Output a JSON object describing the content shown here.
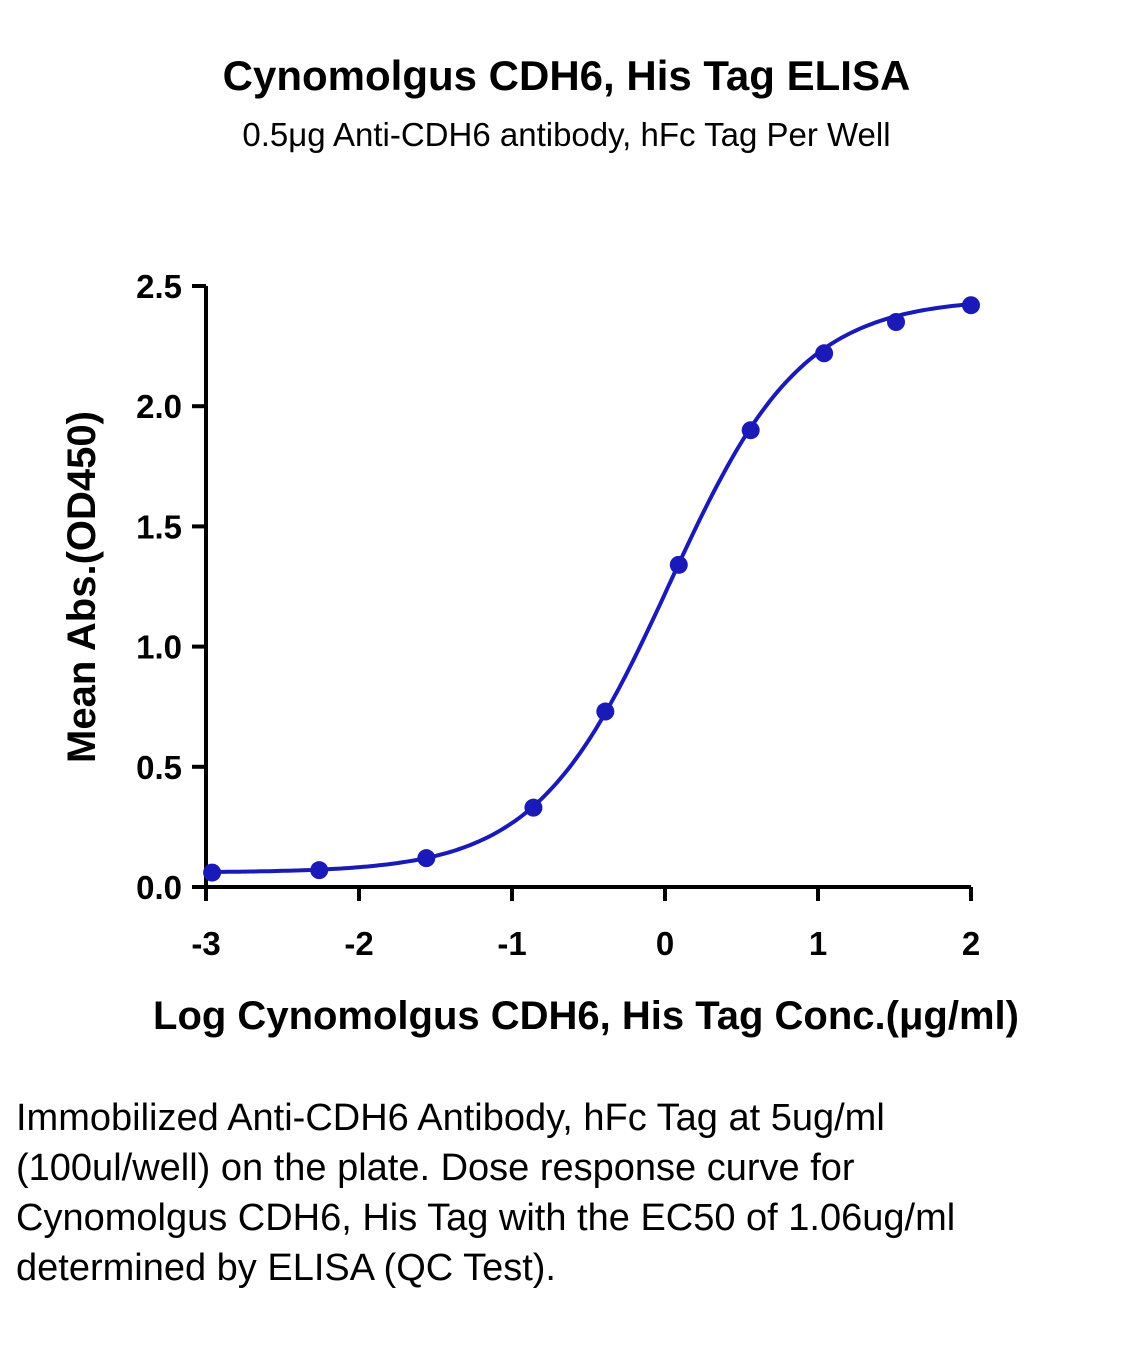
{
  "chart_data": {
    "type": "line",
    "title": "Cynomolgus CDH6, His Tag ELISA",
    "subtitle": "0.5μg Anti-CDH6 antibody, hFc Tag Per Well",
    "xlabel": "Log Cynomolgus CDH6, His Tag Conc.(μg/ml)",
    "ylabel": "Mean Abs.(OD450)",
    "xlim": [
      -3,
      2
    ],
    "ylim": [
      0,
      2.5
    ],
    "x_ticks": [
      -3,
      -2,
      -1,
      0,
      1,
      2
    ],
    "y_ticks": [
      "0.0",
      "0.5",
      "1.0",
      "1.5",
      "2.0",
      "2.5"
    ],
    "grid": false,
    "series": [
      {
        "color": "#1a1ab8",
        "x": [
          -2.96,
          -2.26,
          -1.56,
          -0.86,
          -0.39,
          0.09,
          0.56,
          1.04,
          1.51,
          2.0
        ],
        "y": [
          0.06,
          0.07,
          0.12,
          0.33,
          0.73,
          1.34,
          1.9,
          2.22,
          2.35,
          2.42
        ]
      }
    ],
    "fit": {
      "bottom": 0.06,
      "top": 2.45,
      "log_ec50": 0.025,
      "hill": 1.0
    }
  },
  "caption": "Immobilized Anti-CDH6 Antibody, hFc Tag at 5ug/ml (100ul/well) on the plate. Dose response curve for Cynomolgus CDH6, His Tag with the EC50 of 1.06ug/ml determined by ELISA (QC Test)."
}
